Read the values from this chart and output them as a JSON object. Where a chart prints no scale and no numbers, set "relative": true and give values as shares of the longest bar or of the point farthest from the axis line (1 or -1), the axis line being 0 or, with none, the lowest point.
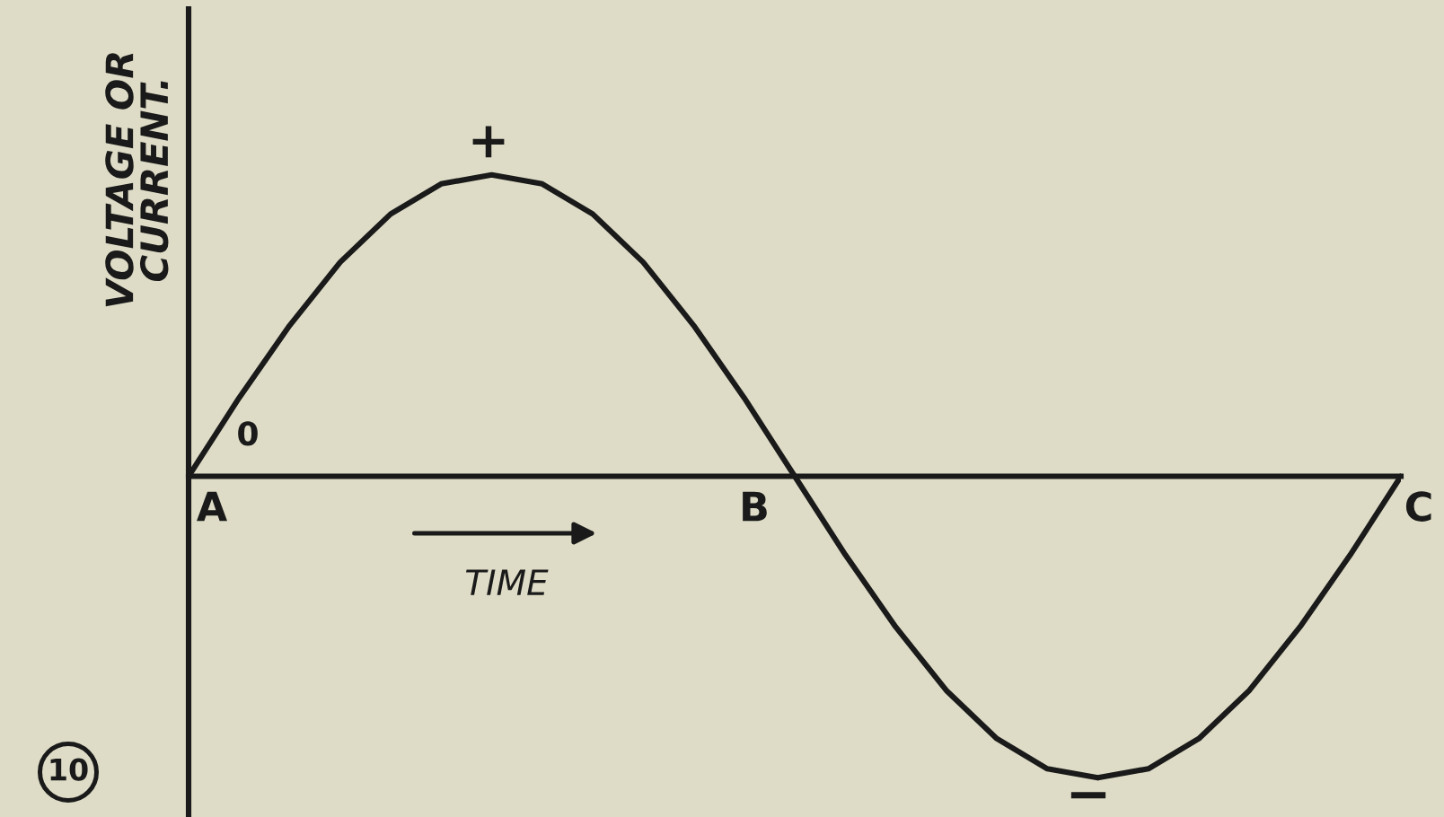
{
  "chart_data": {
    "type": "line",
    "relative": true,
    "xlabel": "TIME",
    "ylabel": "VOLTAGE OR\nCURRENT.",
    "categories": [
      null,
      null,
      null,
      null,
      null,
      null,
      null,
      null,
      null,
      null,
      null,
      null,
      null,
      null,
      null,
      null,
      null,
      null,
      null,
      null,
      null,
      null,
      null,
      null,
      null
    ],
    "series": [
      {
        "color": "#1a1a1a",
        "values": [
          0,
          0.26,
          0.5,
          0.71,
          0.87,
          0.97,
          1,
          0.97,
          0.87,
          0.71,
          0.5,
          0.26,
          0,
          -0.26,
          -0.5,
          -0.71,
          -0.87,
          -0.97,
          -1,
          -0.97,
          -0.87,
          -0.71,
          -0.5,
          -0.26,
          0
        ]
      }
    ],
    "annotations": [
      "+",
      "−",
      "0",
      "A",
      "B",
      "C",
      "10"
    ]
  }
}
